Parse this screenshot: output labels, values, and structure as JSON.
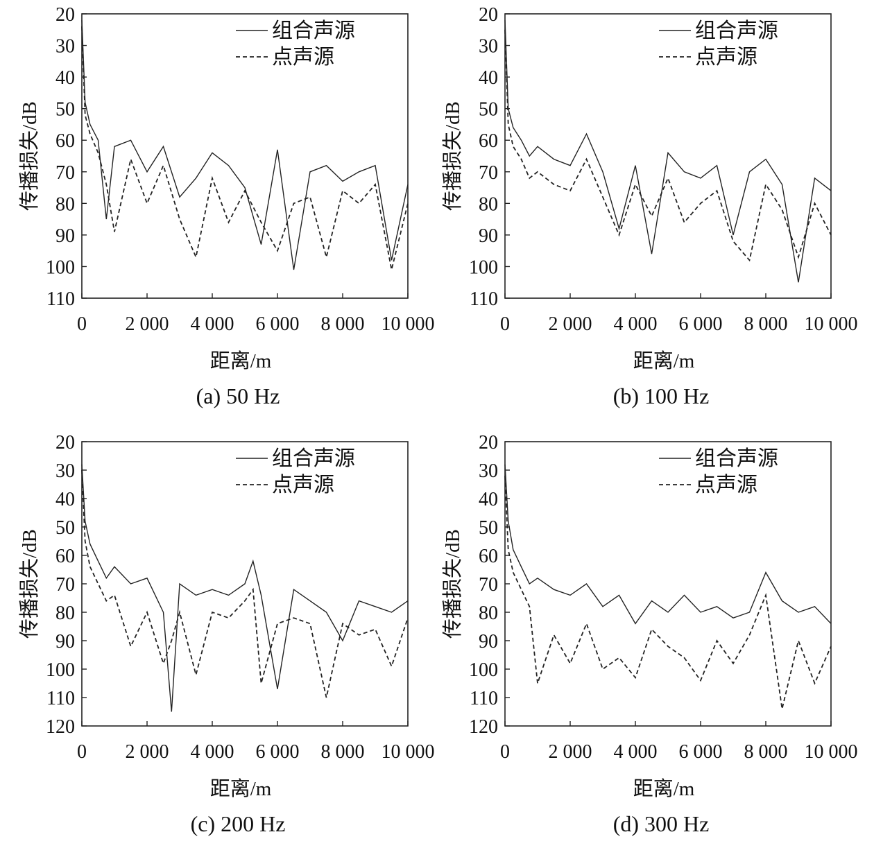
{
  "chart_data": [
    {
      "type": "line",
      "caption": "(a) 50 Hz",
      "xlabel": "距离/m",
      "ylabel": "传播损失/dB",
      "xlim": [
        0,
        10000
      ],
      "ylim": [
        20,
        110
      ],
      "y_inverted": true,
      "xticks": [
        0,
        2000,
        4000,
        6000,
        8000,
        10000
      ],
      "xtick_labels": [
        "0",
        "2 000",
        "4 000",
        "6 000",
        "8 000",
        "10 000"
      ],
      "yticks": [
        20,
        30,
        40,
        50,
        60,
        70,
        80,
        90,
        100,
        110
      ],
      "ytick_labels": [
        "20",
        "30",
        "40",
        "50",
        "60",
        "70",
        "80",
        "90",
        "100",
        "110"
      ],
      "legend_position": "top-right",
      "x": [
        0,
        100,
        250,
        500,
        750,
        1000,
        1500,
        2000,
        2500,
        3000,
        3500,
        4000,
        4500,
        5000,
        5500,
        6000,
        6500,
        7000,
        7500,
        8000,
        8500,
        9000,
        9500,
        10000
      ],
      "series": [
        {
          "name": "组合声源",
          "style": "solid",
          "values": [
            22,
            48,
            55,
            60,
            85,
            62,
            60,
            70,
            62,
            78,
            72,
            64,
            68,
            75,
            93,
            63,
            101,
            70,
            68,
            73,
            70,
            68,
            98,
            74
          ]
        },
        {
          "name": "点声源",
          "style": "dashed",
          "values": [
            24,
            52,
            58,
            64,
            74,
            89,
            66,
            80,
            68,
            85,
            97,
            72,
            86,
            76,
            86,
            95,
            80,
            78,
            97,
            76,
            80,
            74,
            101,
            80
          ]
        }
      ]
    },
    {
      "type": "line",
      "caption": "(b) 100 Hz",
      "xlabel": "距离/m",
      "ylabel": "传播损失/dB",
      "xlim": [
        0,
        10000
      ],
      "ylim": [
        20,
        110
      ],
      "y_inverted": true,
      "xticks": [
        0,
        2000,
        4000,
        6000,
        8000,
        10000
      ],
      "xtick_labels": [
        "0",
        "2 000",
        "4 000",
        "6 000",
        "8 000",
        "10 000"
      ],
      "yticks": [
        20,
        30,
        40,
        50,
        60,
        70,
        80,
        90,
        100,
        110
      ],
      "ytick_labels": [
        "20",
        "30",
        "40",
        "50",
        "60",
        "70",
        "80",
        "90",
        "100",
        "110"
      ],
      "legend_position": "top-right",
      "x": [
        0,
        100,
        250,
        500,
        750,
        1000,
        1500,
        2000,
        2500,
        3000,
        3500,
        4000,
        4500,
        5000,
        5500,
        6000,
        6500,
        7000,
        7500,
        8000,
        8500,
        9000,
        9500,
        10000
      ],
      "series": [
        {
          "name": "组合声源",
          "style": "solid",
          "values": [
            22,
            50,
            56,
            60,
            65,
            62,
            66,
            68,
            58,
            70,
            88,
            68,
            96,
            64,
            70,
            72,
            68,
            90,
            70,
            66,
            74,
            105,
            72,
            76
          ]
        },
        {
          "name": "点声源",
          "style": "dashed",
          "values": [
            25,
            55,
            62,
            66,
            72,
            70,
            74,
            76,
            66,
            78,
            90,
            74,
            84,
            72,
            86,
            80,
            76,
            92,
            98,
            74,
            82,
            97,
            80,
            90
          ]
        }
      ]
    },
    {
      "type": "line",
      "caption": "(c) 200 Hz",
      "xlabel": "距离/m",
      "ylabel": "传播损失/dB",
      "xlim": [
        0,
        10000
      ],
      "ylim": [
        20,
        120
      ],
      "y_inverted": true,
      "xticks": [
        0,
        2000,
        4000,
        6000,
        8000,
        10000
      ],
      "xtick_labels": [
        "0",
        "2 000",
        "4 000",
        "6 000",
        "8 000",
        "10 000"
      ],
      "yticks": [
        20,
        30,
        40,
        50,
        60,
        70,
        80,
        90,
        100,
        110,
        120
      ],
      "ytick_labels": [
        "20",
        "30",
        "40",
        "50",
        "60",
        "70",
        "80",
        "90",
        "100",
        "110",
        "120"
      ],
      "legend_position": "top-right",
      "x": [
        0,
        100,
        250,
        500,
        750,
        1000,
        1500,
        2000,
        2500,
        2750,
        3000,
        3500,
        4000,
        4500,
        5000,
        5250,
        5500,
        6000,
        6500,
        7000,
        7500,
        8000,
        8500,
        9000,
        9500,
        10000
      ],
      "series": [
        {
          "name": "组合声源",
          "style": "solid",
          "values": [
            28,
            48,
            56,
            62,
            68,
            64,
            70,
            68,
            80,
            115,
            70,
            74,
            72,
            74,
            70,
            62,
            74,
            107,
            72,
            76,
            80,
            90,
            76,
            78,
            80,
            76
          ]
        },
        {
          "name": "点声源",
          "style": "dashed",
          "values": [
            30,
            55,
            64,
            70,
            76,
            74,
            92,
            80,
            98,
            90,
            80,
            102,
            80,
            82,
            76,
            72,
            105,
            84,
            82,
            84,
            110,
            84,
            88,
            86,
            99,
            82
          ]
        }
      ]
    },
    {
      "type": "line",
      "caption": "(d) 300 Hz",
      "xlabel": "距离/m",
      "ylabel": "传播损失/dB",
      "xlim": [
        0,
        10000
      ],
      "ylim": [
        20,
        120
      ],
      "y_inverted": true,
      "xticks": [
        0,
        2000,
        4000,
        6000,
        8000,
        10000
      ],
      "xtick_labels": [
        "0",
        "2 000",
        "4 000",
        "6 000",
        "8 000",
        "10 000"
      ],
      "yticks": [
        20,
        30,
        40,
        50,
        60,
        70,
        80,
        90,
        100,
        110,
        120
      ],
      "ytick_labels": [
        "20",
        "30",
        "40",
        "50",
        "60",
        "70",
        "80",
        "90",
        "100",
        "110",
        "120"
      ],
      "legend_position": "top-right",
      "x": [
        0,
        100,
        250,
        500,
        750,
        1000,
        1500,
        2000,
        2500,
        3000,
        3500,
        4000,
        4500,
        5000,
        5500,
        6000,
        6500,
        7000,
        7500,
        8000,
        8500,
        9000,
        9500,
        10000
      ],
      "series": [
        {
          "name": "组合声源",
          "style": "solid",
          "values": [
            28,
            48,
            58,
            64,
            70,
            68,
            72,
            74,
            70,
            78,
            74,
            84,
            76,
            80,
            74,
            80,
            78,
            82,
            80,
            66,
            76,
            80,
            78,
            84
          ]
        },
        {
          "name": "点声源",
          "style": "dashed",
          "values": [
            32,
            58,
            66,
            72,
            78,
            105,
            88,
            98,
            84,
            100,
            96,
            103,
            86,
            92,
            96,
            104,
            90,
            98,
            88,
            74,
            114,
            90,
            105,
            92
          ]
        }
      ]
    }
  ]
}
